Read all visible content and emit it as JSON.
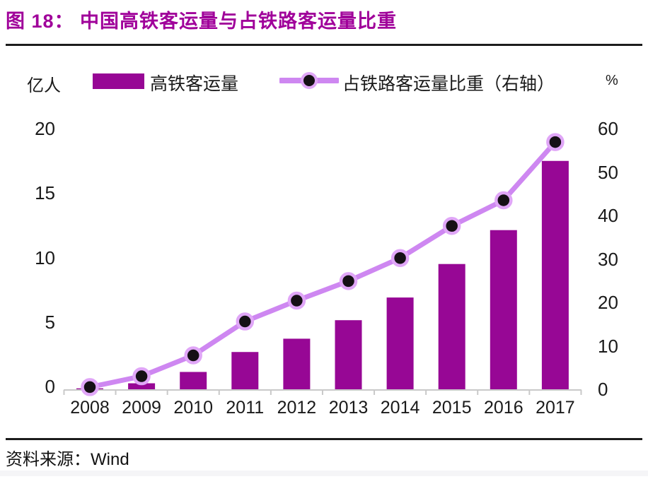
{
  "header": {
    "figure_label": "图 18：",
    "title": "图 18：  中国高铁客运量与占铁路客运量比重"
  },
  "legend": {
    "bar_label": "高铁客运量",
    "line_label": "占铁路客运量比重（右轴）"
  },
  "axes": {
    "left_unit": "亿人",
    "right_unit": "%",
    "left_ticks": [
      "20",
      "15",
      "10",
      "5",
      "0"
    ],
    "right_ticks": [
      "60",
      "50",
      "40",
      "30",
      "20",
      "10",
      "0"
    ]
  },
  "footer": {
    "source": "资料来源：Wind"
  },
  "colors": {
    "title_text": "#a0009a",
    "bar": "#970795",
    "line": "#ce87f1",
    "marker_fill": "#151015",
    "marker_halo": "#e0a6f7",
    "axis_line": "#c9c9c9",
    "divider": "#1c1c1c",
    "text": "#1a1a1a",
    "footer_band": "#f5f5f7"
  },
  "chart_data": {
    "type": "bar",
    "subtype": "bar+line-dual-axis",
    "title": "中国高铁客运量与占铁路客运量比重",
    "categories": [
      "2008",
      "2009",
      "2010",
      "2011",
      "2012",
      "2013",
      "2014",
      "2015",
      "2016",
      "2017"
    ],
    "series": [
      {
        "name": "高铁客运量",
        "type": "bar",
        "axis": "left",
        "unit": "亿人",
        "values": [
          0.07,
          0.46,
          1.33,
          2.86,
          3.88,
          5.3,
          7.04,
          9.61,
          12.21,
          17.52
        ]
      },
      {
        "name": "占铁路客运量比重（右轴）",
        "type": "line",
        "axis": "right",
        "unit": "%",
        "values": [
          0.5,
          3.0,
          7.8,
          15.6,
          20.4,
          24.9,
          30.2,
          37.6,
          43.5,
          56.9
        ]
      }
    ],
    "left_axis": {
      "label": "亿人",
      "range": [
        0,
        20
      ],
      "ticks": [
        0,
        5,
        10,
        15,
        20
      ]
    },
    "right_axis": {
      "label": "%",
      "range": [
        0,
        60
      ],
      "ticks": [
        0,
        10,
        20,
        30,
        40,
        50,
        60
      ]
    },
    "grid": false,
    "legend_position": "top",
    "source": "Wind"
  }
}
